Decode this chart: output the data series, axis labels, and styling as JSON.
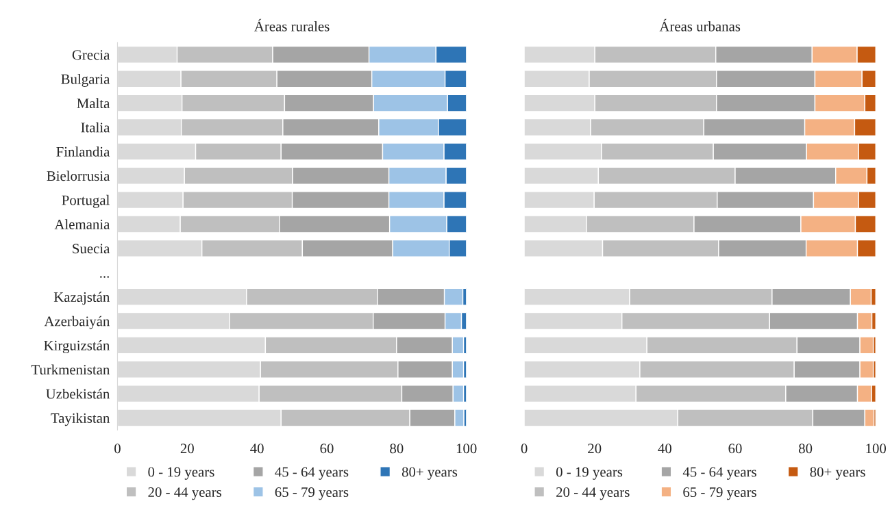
{
  "chart_data": [
    {
      "type": "bar",
      "title": "Áreas rurales",
      "orientation": "horizontal",
      "stacked": true,
      "categories": [
        "Grecia",
        "Bulgaria",
        "Malta",
        "Italia",
        "Finlandia",
        "Bielorrusia",
        "Portugal",
        "Alemania",
        "Suecia",
        "...",
        "Kazajstán",
        "Azerbaiyán",
        "Kirguizstán",
        "Turkmenistan",
        "Uzbekistán",
        "Tayikistan"
      ],
      "series": [
        {
          "name": "0 - 19 years",
          "color": "#d9d9d9",
          "values": [
            17.1,
            18.2,
            18.5,
            18.3,
            22.4,
            19.2,
            18.8,
            18.0,
            24.2,
            null,
            37.0,
            32.1,
            42.4,
            41.0,
            40.6,
            46.9
          ]
        },
        {
          "name": "20 - 44 years",
          "color": "#bfbfbf",
          "values": [
            27.4,
            27.5,
            29.4,
            29.1,
            24.5,
            31.0,
            31.3,
            28.4,
            28.8,
            null,
            37.5,
            41.2,
            37.6,
            39.4,
            40.9,
            36.9
          ]
        },
        {
          "name": "45 - 64 years",
          "color": "#a5a5a5",
          "values": [
            27.6,
            27.2,
            25.5,
            27.5,
            29.1,
            27.6,
            27.7,
            31.6,
            25.9,
            null,
            19.2,
            20.6,
            16.0,
            15.6,
            14.7,
            12.9
          ]
        },
        {
          "name": "65 - 79 years",
          "color": "#9dc3e6",
          "values": [
            19.2,
            21.0,
            21.2,
            17.1,
            17.6,
            16.4,
            15.8,
            16.4,
            16.2,
            null,
            5.3,
            4.7,
            3.2,
            3.2,
            3.0,
            2.6
          ]
        },
        {
          "name": "80+ years",
          "color": "#2e75b6",
          "values": [
            8.7,
            6.1,
            5.4,
            8.0,
            6.4,
            5.8,
            6.4,
            5.6,
            4.9,
            null,
            1.0,
            1.4,
            0.8,
            0.8,
            0.8,
            0.7
          ]
        }
      ],
      "xlim": [
        0,
        100
      ],
      "xticks": [
        0,
        20,
        40,
        60,
        80,
        100
      ],
      "grid": false,
      "legend": "bottom"
    },
    {
      "type": "bar",
      "title": "Áreas urbanas",
      "orientation": "horizontal",
      "stacked": true,
      "categories": [
        null,
        null,
        null,
        null,
        null,
        null,
        null,
        null,
        null,
        null,
        null,
        null,
        null,
        null,
        null,
        null
      ],
      "series": [
        {
          "name": "0 - 19 years",
          "color": "#d9d9d9",
          "values": [
            20.1,
            18.5,
            20.1,
            18.9,
            22.0,
            21.1,
            19.9,
            17.7,
            22.3,
            null,
            30.0,
            27.8,
            34.9,
            32.9,
            31.8,
            43.7
          ]
        },
        {
          "name": "20 - 44 years",
          "color": "#bfbfbf",
          "values": [
            34.4,
            36.2,
            34.6,
            32.2,
            31.8,
            38.9,
            35.0,
            30.6,
            33.0,
            null,
            40.5,
            42.0,
            42.7,
            43.9,
            42.6,
            38.4
          ]
        },
        {
          "name": "45 - 64 years",
          "color": "#a5a5a5",
          "values": [
            27.4,
            28.0,
            28.0,
            28.7,
            26.5,
            28.6,
            27.4,
            30.4,
            24.9,
            null,
            22.3,
            25.0,
            17.9,
            18.7,
            20.4,
            14.8
          ]
        },
        {
          "name": "65 - 79 years",
          "color": "#f4b183",
          "values": [
            12.8,
            13.4,
            14.2,
            14.2,
            14.8,
            8.9,
            12.8,
            15.5,
            14.6,
            null,
            5.9,
            4.1,
            3.8,
            3.8,
            4.0,
            2.6
          ]
        },
        {
          "name": "80+ years",
          "color": "#c55a11",
          "values": [
            5.3,
            3.9,
            3.1,
            6.0,
            4.9,
            2.5,
            4.9,
            5.8,
            5.2,
            null,
            1.3,
            1.1,
            0.7,
            0.7,
            1.2,
            0.5
          ]
        }
      ],
      "xlim": [
        0,
        100
      ],
      "xticks": [
        0,
        20,
        40,
        60,
        80,
        100
      ],
      "grid": false,
      "legend": "bottom",
      "tick_labels": "x"
    }
  ]
}
